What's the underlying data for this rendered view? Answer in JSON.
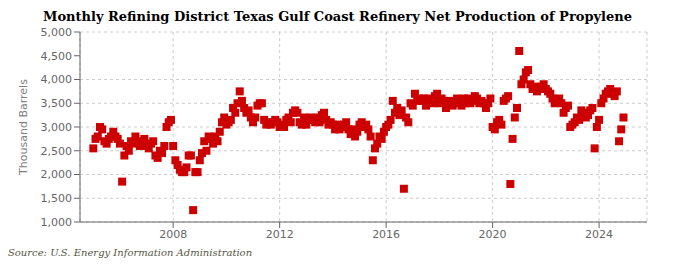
{
  "chart_data": {
    "type": "scatter",
    "title": "Monthly Refining District Texas Gulf Coast Refinery Net Production of Propylene",
    "ylabel": "Thousand Barrels",
    "annotations": [
      "Source: U.S. Energy Information Administration"
    ],
    "color": "#cc0000",
    "marker": "square",
    "grid": true,
    "xlim": [
      2004.5,
      2025.8
    ],
    "xticks": [
      2008,
      2012,
      2016,
      2020,
      2024
    ],
    "ylim": [
      1000,
      5000
    ],
    "yticks": [
      {
        "value": 1000,
        "label": "1,000"
      },
      {
        "value": 1500,
        "label": "1,500"
      },
      {
        "value": 2000,
        "label": "2,000"
      },
      {
        "value": 2500,
        "label": "2,500"
      },
      {
        "value": 3000,
        "label": "3,000"
      },
      {
        "value": 3500,
        "label": "3,500"
      },
      {
        "value": 4000,
        "label": "4,000"
      },
      {
        "value": 4500,
        "label": "4,500"
      },
      {
        "value": 5000,
        "label": "5,000"
      }
    ],
    "x": [
      2005.0,
      2005.083,
      2005.167,
      2005.25,
      2005.333,
      2005.417,
      2005.5,
      2005.583,
      2005.667,
      2005.75,
      2005.833,
      2005.917,
      2006.0,
      2006.083,
      2006.167,
      2006.25,
      2006.333,
      2006.417,
      2006.5,
      2006.583,
      2006.667,
      2006.75,
      2006.833,
      2006.917,
      2007.0,
      2007.083,
      2007.167,
      2007.25,
      2007.333,
      2007.417,
      2007.5,
      2007.583,
      2007.667,
      2007.75,
      2007.833,
      2007.917,
      2008.0,
      2008.083,
      2008.167,
      2008.25,
      2008.333,
      2008.417,
      2008.5,
      2008.583,
      2008.667,
      2008.75,
      2008.833,
      2008.917,
      2009.0,
      2009.083,
      2009.167,
      2009.25,
      2009.333,
      2009.417,
      2009.5,
      2009.583,
      2009.667,
      2009.75,
      2009.833,
      2009.917,
      2010.0,
      2010.083,
      2010.167,
      2010.25,
      2010.333,
      2010.417,
      2010.5,
      2010.583,
      2010.667,
      2010.75,
      2010.833,
      2010.917,
      2011.0,
      2011.083,
      2011.167,
      2011.25,
      2011.333,
      2011.417,
      2011.5,
      2011.583,
      2011.667,
      2011.75,
      2011.833,
      2011.917,
      2012.0,
      2012.083,
      2012.167,
      2012.25,
      2012.333,
      2012.417,
      2012.5,
      2012.583,
      2012.667,
      2012.75,
      2012.833,
      2012.917,
      2013.0,
      2013.083,
      2013.167,
      2013.25,
      2013.333,
      2013.417,
      2013.5,
      2013.583,
      2013.667,
      2013.75,
      2013.833,
      2013.917,
      2014.0,
      2014.083,
      2014.167,
      2014.25,
      2014.333,
      2014.417,
      2014.5,
      2014.583,
      2014.667,
      2014.75,
      2014.833,
      2014.917,
      2015.0,
      2015.083,
      2015.167,
      2015.25,
      2015.333,
      2015.417,
      2015.5,
      2015.583,
      2015.667,
      2015.75,
      2015.833,
      2015.917,
      2016.0,
      2016.083,
      2016.167,
      2016.25,
      2016.333,
      2016.417,
      2016.5,
      2016.583,
      2016.667,
      2016.75,
      2016.833,
      2016.917,
      2017.0,
      2017.083,
      2017.167,
      2017.25,
      2017.333,
      2017.417,
      2017.5,
      2017.583,
      2017.667,
      2017.75,
      2017.833,
      2017.917,
      2018.0,
      2018.083,
      2018.167,
      2018.25,
      2018.333,
      2018.417,
      2018.5,
      2018.583,
      2018.667,
      2018.75,
      2018.833,
      2018.917,
      2019.0,
      2019.083,
      2019.167,
      2019.25,
      2019.333,
      2019.417,
      2019.5,
      2019.583,
      2019.667,
      2019.75,
      2019.833,
      2019.917,
      2020.0,
      2020.083,
      2020.167,
      2020.25,
      2020.333,
      2020.417,
      2020.5,
      2020.583,
      2020.667,
      2020.75,
      2020.833,
      2020.917,
      2021.0,
      2021.083,
      2021.167,
      2021.25,
      2021.333,
      2021.417,
      2021.5,
      2021.583,
      2021.667,
      2021.75,
      2021.833,
      2021.917,
      2022.0,
      2022.083,
      2022.167,
      2022.25,
      2022.333,
      2022.417,
      2022.5,
      2022.583,
      2022.667,
      2022.75,
      2022.833,
      2022.917,
      2023.0,
      2023.083,
      2023.167,
      2023.25,
      2023.333,
      2023.417,
      2023.5,
      2023.583,
      2023.667,
      2023.75,
      2023.833,
      2023.917,
      2024.0,
      2024.083,
      2024.167,
      2024.25,
      2024.333,
      2024.417,
      2024.5,
      2024.583,
      2024.667,
      2024.75,
      2024.833,
      2024.917
    ],
    "values": [
      2550,
      2750,
      2800,
      3000,
      2950,
      2700,
      2650,
      2750,
      2800,
      2900,
      2800,
      2750,
      2650,
      1850,
      2400,
      2600,
      2500,
      2700,
      2650,
      2800,
      2700,
      2600,
      2650,
      2750,
      2600,
      2550,
      2650,
      2700,
      2400,
      2350,
      2500,
      2450,
      2600,
      3000,
      3100,
      3150,
      2600,
      2300,
      2200,
      2100,
      2050,
      2050,
      2150,
      2400,
      2400,
      1250,
      2050,
      2050,
      2300,
      2450,
      2700,
      2500,
      2800,
      2750,
      2650,
      2800,
      2700,
      2900,
      3100,
      3200,
      3050,
      3100,
      3150,
      3400,
      3300,
      3500,
      3750,
      3550,
      3400,
      3300,
      3350,
      3200,
      3100,
      3200,
      3450,
      3500,
      3500,
      3150,
      3050,
      3100,
      3050,
      3100,
      3150,
      3100,
      3000,
      3050,
      3000,
      3150,
      3200,
      3100,
      3300,
      3350,
      3300,
      3100,
      3050,
      3200,
      3050,
      3150,
      3200,
      3150,
      3100,
      3200,
      3100,
      3250,
      3300,
      3150,
      3050,
      3100,
      3050,
      2950,
      3050,
      2950,
      3000,
      3050,
      3100,
      2950,
      2850,
      2950,
      2800,
      2900,
      3050,
      3100,
      3000,
      3050,
      2950,
      2800,
      2300,
      2550,
      2650,
      2800,
      2750,
      2900,
      3000,
      3050,
      3150,
      3550,
      3300,
      3400,
      3250,
      3350,
      1700,
      3200,
      3100,
      3500,
      3450,
      3700,
      3550,
      3600,
      3550,
      3600,
      3450,
      3600,
      3550,
      3500,
      3650,
      3700,
      3500,
      3600,
      3550,
      3400,
      3500,
      3550,
      3450,
      3500,
      3600,
      3550,
      3450,
      3600,
      3500,
      3600,
      3500,
      3550,
      3650,
      3600,
      3500,
      3550,
      3500,
      3400,
      3500,
      3600,
      3000,
      2950,
      3100,
      3150,
      3050,
      3550,
      3600,
      3650,
      1800,
      2750,
      3200,
      3400,
      4600,
      3900,
      4000,
      4150,
      4200,
      3900,
      3800,
      3850,
      3750,
      3800,
      3850,
      3900,
      3800,
      3750,
      3700,
      3600,
      3500,
      3550,
      3600,
      3500,
      3300,
      3400,
      3450,
      3000,
      3050,
      3100,
      3200,
      3150,
      3350,
      3300,
      3200,
      3250,
      3350,
      3400,
      2550,
      3000,
      3150,
      3500,
      3600,
      3700,
      3750,
      3800,
      3700,
      3650,
      3750,
      2700,
      2950,
      3200
    ]
  }
}
